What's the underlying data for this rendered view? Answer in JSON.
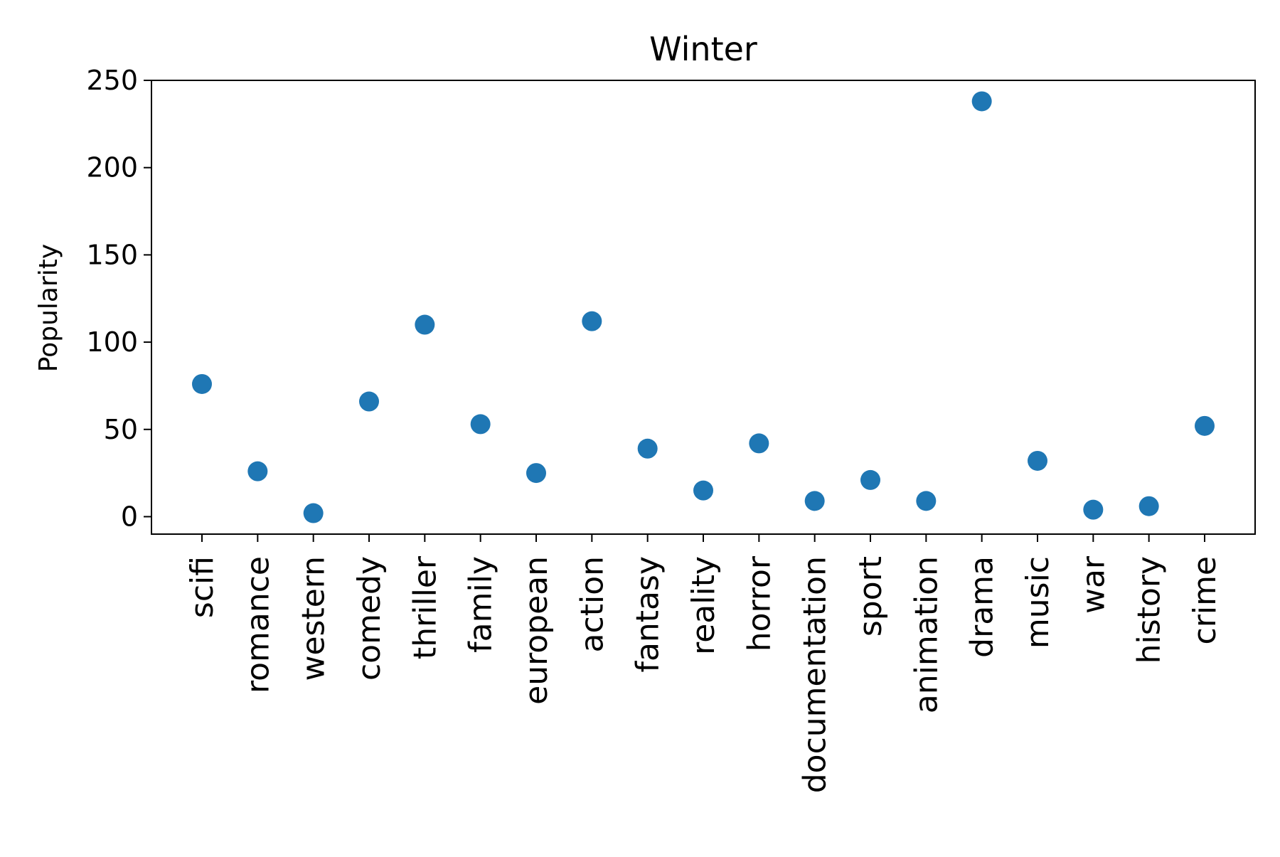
{
  "chart_data": {
    "type": "scatter",
    "title": "Winter",
    "xlabel": "",
    "ylabel": "Popularity",
    "categories": [
      "scifi",
      "romance",
      "western",
      "comedy",
      "thriller",
      "family",
      "european",
      "action",
      "fantasy",
      "reality",
      "horror",
      "documentation",
      "sport",
      "animation",
      "drama",
      "music",
      "war",
      "history",
      "crime"
    ],
    "values": [
      76,
      26,
      2,
      66,
      110,
      53,
      25,
      112,
      39,
      15,
      42,
      9,
      21,
      9,
      238,
      32,
      4,
      6,
      52
    ],
    "yticks": [
      "0",
      "50",
      "100",
      "150",
      "200",
      "250"
    ],
    "ylim": [
      -10,
      250
    ],
    "grid": false,
    "marker_color": "#1f77b4"
  }
}
